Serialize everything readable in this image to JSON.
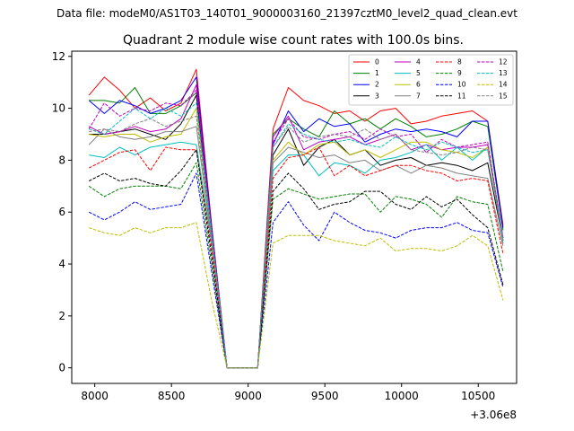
{
  "chart_data": {
    "type": "line",
    "suptitle": "Data file: modeM0/AS1T03_140T01_9000003160_21397cztM0_level2_quad_clean.evt",
    "title": "Quadrant 2 module wise count rates with 100.0s bins.",
    "xlabel": "",
    "ylabel": "",
    "x_offset_label": "+3.06e8",
    "xlim": [
      7850,
      10750
    ],
    "ylim": [
      -0.6,
      12.2
    ],
    "xticks": [
      8000,
      8500,
      9000,
      9500,
      10000,
      10500
    ],
    "yticks": [
      0,
      2,
      4,
      6,
      8,
      10,
      12
    ],
    "grid": false,
    "legend": {
      "placement": "top-right",
      "columns": 4
    },
    "x": [
      7962,
      8062,
      8162,
      8262,
      8362,
      8462,
      8562,
      8662,
      8762,
      8862,
      8962,
      9062,
      9162,
      9262,
      9362,
      9462,
      9562,
      9662,
      9762,
      9862,
      9962,
      10062,
      10162,
      10262,
      10362,
      10462,
      10562,
      10662
    ],
    "series": [
      {
        "name": "0",
        "color": "#ff0000",
        "dash": false,
        "values": [
          10.5,
          11.2,
          10.7,
          10.0,
          10.4,
          9.9,
          10.2,
          11.5,
          5.5,
          0.0,
          0.0,
          0.0,
          9.2,
          10.8,
          10.3,
          10.1,
          9.8,
          9.9,
          9.5,
          9.9,
          10.0,
          9.4,
          9.5,
          9.7,
          9.8,
          9.9,
          9.5,
          5.5
        ]
      },
      {
        "name": "1",
        "color": "#008000",
        "dash": false,
        "values": [
          10.3,
          10.3,
          10.2,
          10.8,
          9.8,
          9.8,
          10.1,
          10.6,
          5.0,
          0.0,
          0.0,
          0.0,
          9.0,
          9.6,
          9.2,
          8.9,
          9.9,
          9.4,
          9.6,
          9.2,
          9.6,
          9.3,
          8.9,
          9.0,
          9.2,
          9.5,
          9.3,
          5.3
        ]
      },
      {
        "name": "2",
        "color": "#0000ff",
        "dash": false,
        "values": [
          10.3,
          9.8,
          10.3,
          10.1,
          9.8,
          10.0,
          10.3,
          11.2,
          5.4,
          0.0,
          0.0,
          0.0,
          8.6,
          9.9,
          9.1,
          9.6,
          9.3,
          9.4,
          8.7,
          9.0,
          9.2,
          9.1,
          9.2,
          9.1,
          8.9,
          9.5,
          9.5,
          5.4
        ]
      },
      {
        "name": "3",
        "color": "#000000",
        "dash": false,
        "values": [
          9.0,
          9.0,
          9.1,
          9.2,
          9.0,
          8.8,
          9.4,
          10.5,
          5.1,
          0.0,
          0.0,
          0.0,
          8.2,
          9.2,
          7.8,
          8.5,
          8.8,
          8.2,
          8.4,
          7.8,
          8.0,
          8.1,
          7.8,
          7.9,
          7.8,
          7.6,
          7.9,
          4.9
        ]
      },
      {
        "name": "4",
        "color": "#bf00bf",
        "dash": false,
        "values": [
          9.3,
          9.0,
          9.1,
          9.3,
          9.1,
          9.2,
          9.6,
          10.9,
          5.2,
          0.0,
          0.0,
          0.0,
          8.9,
          9.7,
          8.4,
          8.7,
          8.8,
          8.9,
          8.6,
          8.8,
          9.0,
          8.4,
          8.6,
          8.4,
          8.5,
          8.5,
          8.6,
          5.0
        ]
      },
      {
        "name": "5",
        "color": "#00bfbf",
        "dash": false,
        "values": [
          8.2,
          8.1,
          8.5,
          8.2,
          8.5,
          8.6,
          8.7,
          8.6,
          4.8,
          0.0,
          0.0,
          0.0,
          7.6,
          8.2,
          8.2,
          7.4,
          7.9,
          7.8,
          7.5,
          8.0,
          8.1,
          8.3,
          8.6,
          8.0,
          8.5,
          8.0,
          8.5,
          4.8
        ]
      },
      {
        "name": "6",
        "color": "#bfbf00",
        "dash": false,
        "values": [
          9.0,
          8.9,
          9.0,
          9.0,
          8.7,
          8.9,
          9.0,
          10.0,
          5.0,
          0.0,
          0.0,
          0.0,
          8.0,
          8.7,
          8.2,
          8.6,
          8.7,
          8.2,
          8.4,
          8.1,
          8.4,
          8.7,
          8.7,
          8.4,
          8.3,
          8.1,
          8.5,
          4.9
        ]
      },
      {
        "name": "7",
        "color": "#808080",
        "dash": false,
        "values": [
          8.6,
          9.2,
          8.9,
          8.8,
          8.9,
          9.1,
          9.1,
          9.3,
          4.9,
          0.0,
          0.0,
          0.0,
          7.9,
          8.5,
          8.3,
          8.1,
          8.2,
          7.9,
          8.0,
          7.6,
          7.8,
          7.5,
          7.8,
          7.7,
          7.5,
          7.4,
          7.3,
          4.7
        ]
      },
      {
        "name": "8",
        "color": "#ff0000",
        "dash": true,
        "values": [
          7.7,
          8.0,
          8.3,
          8.4,
          7.6,
          8.5,
          8.4,
          8.4,
          4.6,
          0.0,
          0.0,
          0.0,
          7.3,
          8.1,
          8.2,
          8.5,
          7.4,
          7.8,
          7.4,
          7.6,
          7.8,
          7.8,
          7.6,
          7.5,
          7.2,
          7.3,
          7.2,
          4.4
        ]
      },
      {
        "name": "9",
        "color": "#008000",
        "dash": true,
        "values": [
          7.0,
          6.6,
          6.9,
          7.0,
          7.0,
          7.0,
          6.9,
          7.9,
          4.0,
          0.0,
          0.0,
          0.0,
          6.5,
          6.9,
          6.7,
          6.5,
          6.6,
          6.7,
          6.7,
          6.0,
          6.6,
          6.5,
          6.3,
          5.8,
          6.6,
          6.4,
          6.3,
          3.7
        ]
      },
      {
        "name": "10",
        "color": "#0000ff",
        "dash": true,
        "values": [
          6.0,
          5.7,
          6.0,
          6.4,
          6.1,
          6.2,
          6.3,
          7.5,
          3.7,
          0.0,
          0.0,
          0.0,
          5.6,
          6.4,
          5.5,
          4.9,
          6.0,
          5.6,
          5.3,
          5.2,
          5.0,
          5.3,
          5.4,
          5.4,
          5.6,
          5.3,
          5.2,
          3.1
        ]
      },
      {
        "name": "11",
        "color": "#000000",
        "dash": true,
        "values": [
          7.2,
          7.5,
          7.2,
          7.3,
          7.1,
          7.0,
          7.6,
          8.4,
          4.3,
          0.0,
          0.0,
          0.0,
          6.8,
          7.5,
          6.9,
          6.1,
          6.3,
          6.4,
          6.8,
          6.8,
          6.3,
          6.1,
          6.6,
          6.2,
          6.5,
          5.9,
          5.4,
          3.2
        ]
      },
      {
        "name": "12",
        "color": "#bf00bf",
        "dash": true,
        "values": [
          9.2,
          10.2,
          9.7,
          10.0,
          9.9,
          10.2,
          10.1,
          10.7,
          5.2,
          0.0,
          0.0,
          0.0,
          8.7,
          9.6,
          8.9,
          8.8,
          9.0,
          9.1,
          8.8,
          9.2,
          8.9,
          9.0,
          8.3,
          8.8,
          8.5,
          8.6,
          8.7,
          5.0
        ]
      },
      {
        "name": "13",
        "color": "#00bfbf",
        "dash": true,
        "values": [
          9.2,
          9.0,
          9.5,
          10.0,
          9.6,
          10.0,
          9.7,
          10.2,
          5.2,
          0.0,
          0.0,
          0.0,
          8.5,
          9.4,
          9.0,
          8.8,
          8.7,
          8.8,
          8.6,
          8.5,
          8.9,
          8.6,
          8.4,
          8.7,
          8.5,
          8.3,
          8.4,
          4.9
        ]
      },
      {
        "name": "14",
        "color": "#bfbf00",
        "dash": true,
        "values": [
          5.4,
          5.2,
          5.1,
          5.4,
          5.2,
          5.4,
          5.4,
          5.6,
          2.6,
          0.0,
          0.0,
          0.0,
          4.8,
          5.1,
          5.1,
          5.1,
          4.9,
          4.8,
          4.7,
          5.0,
          4.5,
          4.6,
          4.6,
          4.5,
          4.7,
          5.1,
          4.7,
          2.6
        ]
      },
      {
        "name": "15",
        "color": "#808080",
        "dash": true,
        "values": [
          9.1,
          9.2,
          9.1,
          9.4,
          9.6,
          9.3,
          9.5,
          9.7,
          5.0,
          0.0,
          0.0,
          0.0,
          8.5,
          9.3,
          8.7,
          8.9,
          9.0,
          8.9,
          9.2,
          8.8,
          9.0,
          8.4,
          8.3,
          8.2,
          8.3,
          8.5,
          8.4,
          4.9
        ]
      }
    ]
  }
}
